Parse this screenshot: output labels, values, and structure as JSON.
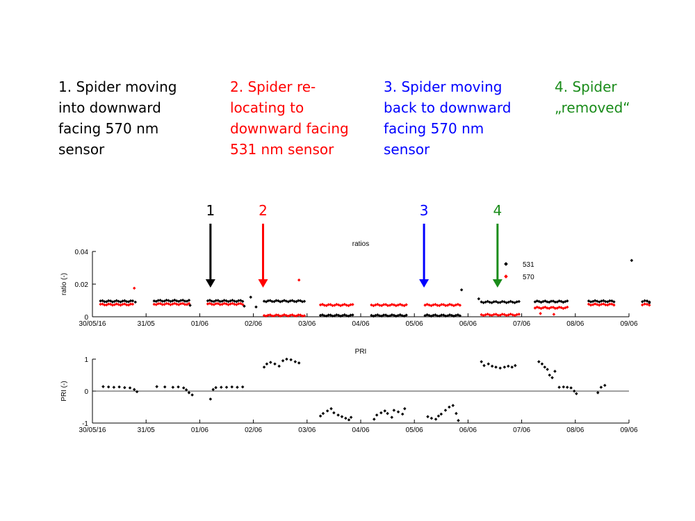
{
  "annotations": [
    {
      "lines": [
        "1. Spider moving",
        "into downward",
        "facing 570 nm",
        "sensor"
      ],
      "color": "#000000"
    },
    {
      "lines": [
        "2. Spider re-",
        "locating to",
        "downward facing",
        "531 nm sensor"
      ],
      "color": "#ff0000"
    },
    {
      "lines": [
        "3. Spider moving",
        "back to downward",
        "facing 570 nm",
        "sensor"
      ],
      "color": "#0000ff"
    },
    {
      "lines": [
        "4. Spider",
        "„removed“"
      ],
      "color": "#1a8c1a"
    }
  ],
  "arrows": [
    {
      "label": "1",
      "x": 2.2,
      "color": "#000000"
    },
    {
      "label": "2",
      "x": 3.18,
      "color": "#ff0000"
    },
    {
      "label": "3",
      "x": 6.18,
      "color": "#0000ff"
    },
    {
      "label": "4",
      "x": 7.55,
      "color": "#1a8c1a"
    }
  ],
  "chart_data": [
    {
      "type": "scatter",
      "title": "ratios",
      "xlabel": "",
      "ylabel": "ratio (-)",
      "xlim": [
        0,
        10
      ],
      "ylim": [
        0,
        0.04
      ],
      "x_tick_labels": [
        "30/05/16",
        "31/05",
        "01/06",
        "02/06",
        "03/06",
        "04/06",
        "05/06",
        "06/06",
        "07/06",
        "08/06",
        "09/06"
      ],
      "y_tick_labels": [
        "0",
        "0.02",
        "0.04"
      ],
      "legend": {
        "position": "top-right",
        "entries": [
          "531",
          "570"
        ]
      },
      "series": [
        {
          "name": "531",
          "color": "#000000",
          "segments": [
            {
              "x": [
                0.15,
                0.75
              ],
              "y": [
                0.0095,
                0.0095
              ]
            },
            {
              "x": [
                1.15,
                1.8
              ],
              "y": [
                0.0098,
                0.0098
              ]
            },
            {
              "x": [
                2.15,
                2.8
              ],
              "y": [
                0.0097,
                0.0097
              ]
            },
            {
              "x": [
                3.2,
                3.95
              ],
              "y": [
                0.0096,
                0.0096
              ]
            },
            {
              "x": [
                4.25,
                4.85
              ],
              "y": [
                0.0008,
                0.0008
              ]
            },
            {
              "x": [
                5.2,
                5.85
              ],
              "y": [
                0.0008,
                0.0008
              ]
            },
            {
              "x": [
                6.2,
                6.85
              ],
              "y": [
                0.0008,
                0.0008
              ]
            },
            {
              "x": [
                7.25,
                7.95
              ],
              "y": [
                0.009,
                0.009
              ]
            },
            {
              "x": [
                8.25,
                8.85
              ],
              "y": [
                0.0093,
                0.0093
              ]
            },
            {
              "x": [
                9.25,
                9.72
              ],
              "y": [
                0.0095,
                0.0095
              ]
            },
            {
              "x": [
                10.25,
                10.38
              ],
              "y": [
                0.0095,
                0.0095
              ]
            }
          ],
          "points": [
            [
              0.8,
              0.009
            ],
            [
              1.82,
              0.007
            ],
            [
              2.83,
              0.0065
            ],
            [
              2.95,
              0.012
            ],
            [
              3.05,
              0.006
            ],
            [
              6.88,
              0.0165
            ],
            [
              7.2,
              0.011
            ],
            [
              10.05,
              0.0345
            ],
            [
              10.38,
              0.0085
            ]
          ]
        },
        {
          "name": "570",
          "color": "#ff0000",
          "segments": [
            {
              "x": [
                0.15,
                0.75
              ],
              "y": [
                0.0075,
                0.0075
              ]
            },
            {
              "x": [
                1.15,
                1.8
              ],
              "y": [
                0.0078,
                0.0078
              ]
            },
            {
              "x": [
                2.15,
                2.8
              ],
              "y": [
                0.0078,
                0.0078
              ]
            },
            {
              "x": [
                3.2,
                3.95
              ],
              "y": [
                0.0008,
                0.0008
              ]
            },
            {
              "x": [
                4.25,
                4.85
              ],
              "y": [
                0.0072,
                0.0072
              ]
            },
            {
              "x": [
                5.2,
                5.85
              ],
              "y": [
                0.0072,
                0.0072
              ]
            },
            {
              "x": [
                6.2,
                6.85
              ],
              "y": [
                0.0072,
                0.0072
              ]
            },
            {
              "x": [
                7.25,
                7.95
              ],
              "y": [
                0.0012,
                0.0012
              ]
            },
            {
              "x": [
                8.25,
                8.85
              ],
              "y": [
                0.0055,
                0.0055
              ]
            },
            {
              "x": [
                9.25,
                9.72
              ],
              "y": [
                0.0075,
                0.0075
              ]
            },
            {
              "x": [
                10.25,
                10.38
              ],
              "y": [
                0.0075,
                0.0075
              ]
            }
          ],
          "points": [
            [
              0.78,
              0.0175
            ],
            [
              3.85,
              0.0225
            ],
            [
              8.35,
              0.002
            ],
            [
              8.6,
              0.0015
            ]
          ]
        }
      ]
    },
    {
      "type": "scatter",
      "title": "PRI",
      "xlabel": "",
      "ylabel": "PRI (-)",
      "xlim": [
        0,
        10
      ],
      "ylim": [
        -1,
        1
      ],
      "zero_line": true,
      "x_tick_labels": [
        "30/05/16",
        "31/05",
        "01/06",
        "02/06",
        "03/06",
        "04/06",
        "05/06",
        "06/06",
        "07/06",
        "08/06",
        "09/06"
      ],
      "y_tick_labels": [
        "-1",
        "0",
        "1"
      ],
      "series": [
        {
          "name": "",
          "color": "#000000",
          "points": [
            [
              0.2,
              0.14
            ],
            [
              0.3,
              0.13
            ],
            [
              0.4,
              0.12
            ],
            [
              0.5,
              0.13
            ],
            [
              0.6,
              0.11
            ],
            [
              0.7,
              0.1
            ],
            [
              0.78,
              0.05
            ],
            [
              0.83,
              -0.02
            ],
            [
              1.2,
              0.14
            ],
            [
              1.35,
              0.13
            ],
            [
              1.5,
              0.12
            ],
            [
              1.6,
              0.13
            ],
            [
              1.7,
              0.1
            ],
            [
              1.75,
              0.04
            ],
            [
              1.8,
              -0.05
            ],
            [
              1.86,
              -0.12
            ],
            [
              2.2,
              -0.25
            ],
            [
              2.25,
              0.05
            ],
            [
              2.3,
              0.11
            ],
            [
              2.4,
              0.12
            ],
            [
              2.5,
              0.12
            ],
            [
              2.6,
              0.13
            ],
            [
              2.7,
              0.12
            ],
            [
              2.8,
              0.13
            ],
            [
              3.2,
              0.75
            ],
            [
              3.25,
              0.85
            ],
            [
              3.32,
              0.9
            ],
            [
              3.4,
              0.85
            ],
            [
              3.48,
              0.78
            ],
            [
              3.55,
              0.95
            ],
            [
              3.62,
              1.0
            ],
            [
              3.7,
              0.98
            ],
            [
              3.78,
              0.92
            ],
            [
              3.85,
              0.88
            ],
            [
              4.25,
              -0.78
            ],
            [
              4.3,
              -0.7
            ],
            [
              4.38,
              -0.62
            ],
            [
              4.45,
              -0.55
            ],
            [
              4.5,
              -0.68
            ],
            [
              4.58,
              -0.75
            ],
            [
              4.65,
              -0.8
            ],
            [
              4.72,
              -0.85
            ],
            [
              4.78,
              -0.9
            ],
            [
              4.82,
              -0.82
            ],
            [
              5.25,
              -0.88
            ],
            [
              5.3,
              -0.75
            ],
            [
              5.38,
              -0.68
            ],
            [
              5.45,
              -0.62
            ],
            [
              5.5,
              -0.7
            ],
            [
              5.58,
              -0.82
            ],
            [
              5.62,
              -0.6
            ],
            [
              5.7,
              -0.65
            ],
            [
              5.78,
              -0.72
            ],
            [
              5.82,
              -0.55
            ],
            [
              6.25,
              -0.8
            ],
            [
              6.32,
              -0.85
            ],
            [
              6.4,
              -0.88
            ],
            [
              6.45,
              -0.78
            ],
            [
              6.5,
              -0.72
            ],
            [
              6.58,
              -0.6
            ],
            [
              6.65,
              -0.5
            ],
            [
              6.72,
              -0.45
            ],
            [
              6.78,
              -0.7
            ],
            [
              6.82,
              -0.92
            ],
            [
              7.25,
              0.92
            ],
            [
              7.3,
              0.8
            ],
            [
              7.38,
              0.85
            ],
            [
              7.45,
              0.78
            ],
            [
              7.52,
              0.75
            ],
            [
              7.6,
              0.72
            ],
            [
              7.68,
              0.75
            ],
            [
              7.75,
              0.78
            ],
            [
              7.82,
              0.75
            ],
            [
              7.88,
              0.8
            ],
            [
              8.32,
              0.92
            ],
            [
              8.38,
              0.85
            ],
            [
              8.43,
              0.75
            ],
            [
              8.48,
              0.68
            ],
            [
              8.52,
              0.5
            ],
            [
              8.57,
              0.42
            ],
            [
              8.62,
              0.62
            ],
            [
              8.7,
              0.12
            ],
            [
              8.78,
              0.13
            ],
            [
              8.85,
              0.12
            ],
            [
              8.92,
              0.1
            ],
            [
              8.98,
              0.0
            ],
            [
              9.02,
              -0.08
            ],
            [
              9.42,
              -0.05
            ],
            [
              9.48,
              0.12
            ],
            [
              9.55,
              0.18
            ]
          ]
        }
      ]
    }
  ]
}
